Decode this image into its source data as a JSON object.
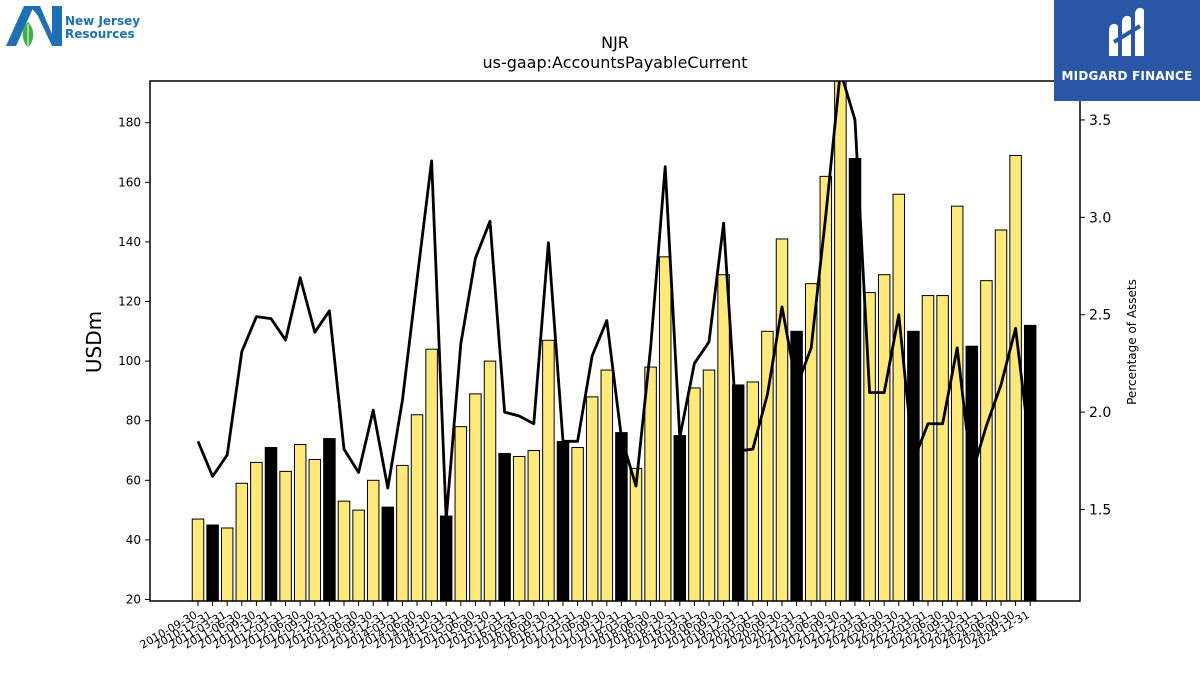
{
  "logos": {
    "left_text_line1": "New Jersey",
    "left_text_line2": "Resources",
    "right_text": "MIDGARD FINANCE"
  },
  "colors": {
    "bar_yellow": "#ffe97a",
    "bar_black": "#000000",
    "line": "#000000",
    "left_logo_blue": "#1f6fb5",
    "left_logo_green": "#3fae49",
    "right_logo_bg": "#2a56a6"
  },
  "chart_data": {
    "type": "bar",
    "title": "NJR",
    "subtitle": "us-gaap:AccountsPayableCurrent",
    "ylabel": "USDm",
    "y2label": "Percentage of Assets",
    "ylim": [
      19.5,
      194
    ],
    "y2lim": [
      1.03,
      3.7
    ],
    "yticks": [
      20,
      40,
      60,
      80,
      100,
      120,
      140,
      160,
      180
    ],
    "y2ticks": [
      1.5,
      2.0,
      2.5,
      3.0,
      3.5
    ],
    "grid": false,
    "categories": [
      "2010-09-30",
      "2010-12-31",
      "2011-03-31",
      "2011-06-30",
      "2011-09-30",
      "2011-12-31",
      "2012-03-31",
      "2012-06-30",
      "2012-09-30",
      "2012-12-31",
      "2013-03-31",
      "2013-06-30",
      "2013-09-30",
      "2013-12-31",
      "2014-03-31",
      "2014-06-30",
      "2014-09-30",
      "2014-12-31",
      "2015-03-31",
      "2015-06-30",
      "2015-09-30",
      "2015-12-31",
      "2016-03-31",
      "2016-06-30",
      "2016-09-30",
      "2016-12-31",
      "2017-03-31",
      "2017-06-30",
      "2017-09-30",
      "2017-12-31",
      "2018-03-31",
      "2018-06-30",
      "2018-09-30",
      "2018-12-31",
      "2019-03-31",
      "2019-06-30",
      "2019-09-30",
      "2019-12-31",
      "2020-03-31",
      "2020-06-30",
      "2020-09-30",
      "2020-12-31",
      "2021-03-31",
      "2021-06-30",
      "2021-09-30",
      "2021-12-31",
      "2022-03-31",
      "2022-06-30",
      "2022-09-30",
      "2022-12-31",
      "2023-03-31",
      "2023-06-30",
      "2023-09-30",
      "2023-12-31",
      "2024-03-31",
      "2024-06-30",
      "2024-09-30",
      "2024-12-31"
    ],
    "series": [
      {
        "values": [
          47,
          45,
          44,
          59,
          66,
          71,
          63,
          72,
          67,
          74,
          53,
          50,
          60,
          51,
          65,
          82,
          104,
          48,
          78,
          89,
          100,
          69,
          68,
          70,
          107,
          73,
          71,
          88,
          97,
          76,
          64,
          98,
          135,
          75,
          91,
          97,
          129,
          92,
          93,
          110,
          141,
          110,
          126,
          162,
          195,
          168,
          123,
          129,
          156,
          110,
          122,
          122,
          152,
          105,
          127,
          144,
          169,
          112
        ],
        "highlight": [
          false,
          true,
          false,
          false,
          false,
          true,
          false,
          false,
          false,
          true,
          false,
          false,
          false,
          true,
          false,
          false,
          false,
          true,
          false,
          false,
          false,
          true,
          false,
          false,
          false,
          true,
          false,
          false,
          false,
          true,
          false,
          false,
          false,
          true,
          false,
          false,
          false,
          true,
          false,
          false,
          false,
          true,
          false,
          false,
          false,
          true,
          false,
          false,
          false,
          true,
          false,
          false,
          false,
          true,
          false,
          false,
          false,
          true
        ]
      },
      {
        "axis": "right",
        "type": "line",
        "values": [
          1.85,
          1.67,
          1.78,
          2.31,
          2.49,
          2.48,
          2.37,
          2.69,
          2.41,
          2.52,
          1.81,
          1.69,
          2.01,
          1.61,
          2.06,
          2.68,
          3.29,
          1.45,
          2.35,
          2.79,
          2.98,
          2.0,
          1.98,
          1.94,
          2.87,
          1.85,
          1.85,
          2.29,
          2.47,
          1.87,
          1.62,
          2.33,
          3.26,
          1.87,
          2.25,
          2.36,
          2.97,
          1.8,
          1.81,
          2.09,
          2.54,
          2.13,
          2.33,
          3.01,
          3.75,
          3.5,
          2.1,
          2.1,
          2.5,
          1.75,
          1.94,
          1.94,
          2.33,
          1.68,
          1.93,
          2.14,
          2.43,
          1.8
        ]
      }
    ]
  }
}
